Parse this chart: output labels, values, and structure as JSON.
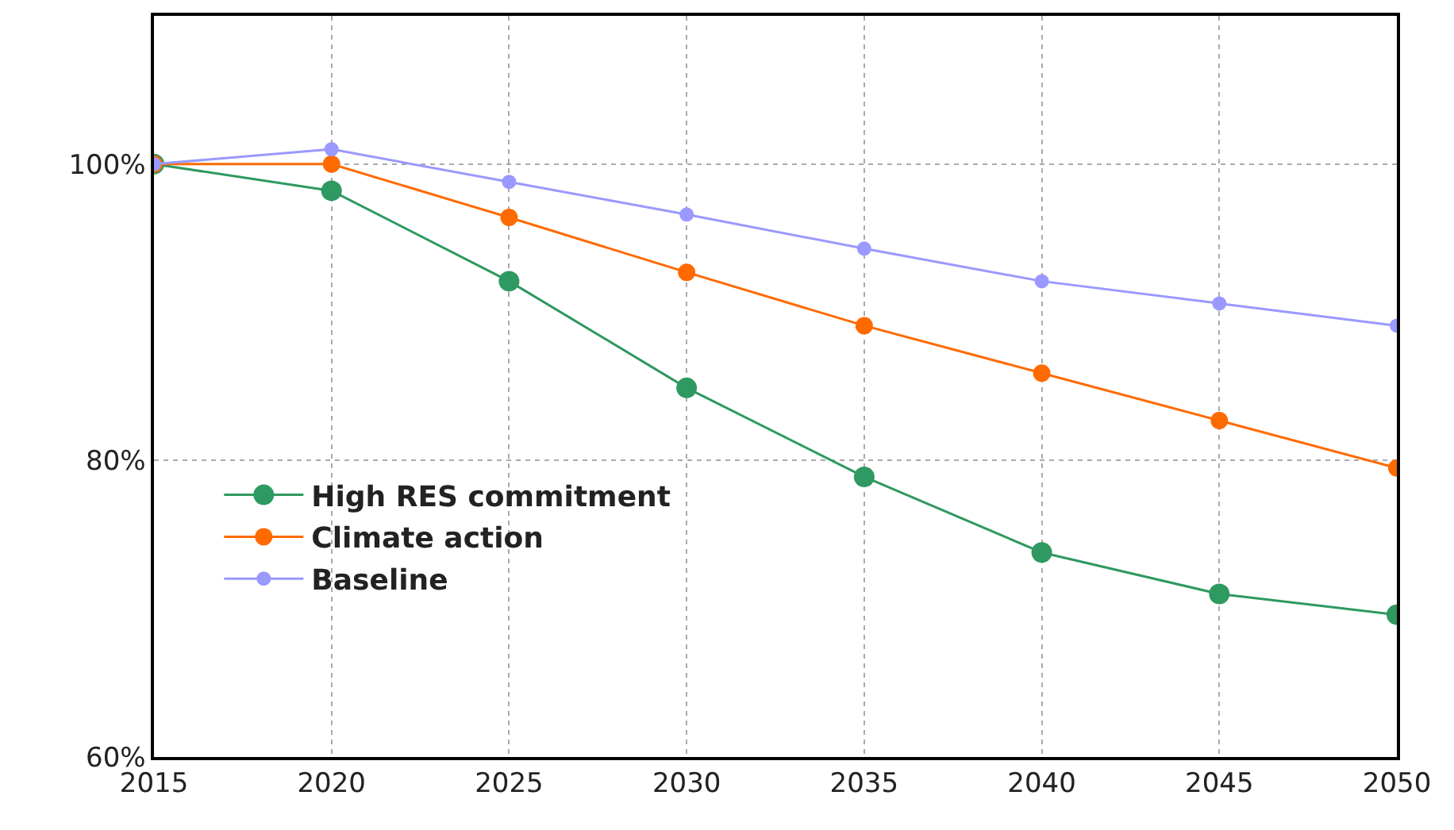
{
  "chart_data": {
    "type": "line",
    "x": [
      2015,
      2020,
      2025,
      2030,
      2035,
      2040,
      2045,
      2050
    ],
    "series": [
      {
        "name": "High RES commitment",
        "color": "#2e9960",
        "values": [
          100,
          98.2,
          92.1,
          84.9,
          78.9,
          73.8,
          71.0,
          69.6
        ]
      },
      {
        "name": "Climate action",
        "color": "#ff6a00",
        "values": [
          100,
          100,
          96.4,
          92.7,
          89.1,
          85.9,
          82.7,
          79.5
        ]
      },
      {
        "name": "Baseline",
        "color": "#9999ff",
        "values": [
          100,
          101.0,
          98.8,
          96.6,
          94.3,
          92.1,
          90.6,
          89.1
        ]
      }
    ],
    "xlim": [
      2015,
      2050
    ],
    "xticks": [
      2015,
      2020,
      2025,
      2030,
      2035,
      2040,
      2045,
      2050
    ],
    "ylim": [
      60,
      110
    ],
    "yticks": [
      {
        "value": 60,
        "label": "60%"
      },
      {
        "value": 80,
        "label": "80%"
      },
      {
        "value": 100,
        "label": "100%"
      }
    ],
    "grid": true,
    "legend": "bottom left",
    "marker": "circle",
    "line_style": "solid"
  }
}
